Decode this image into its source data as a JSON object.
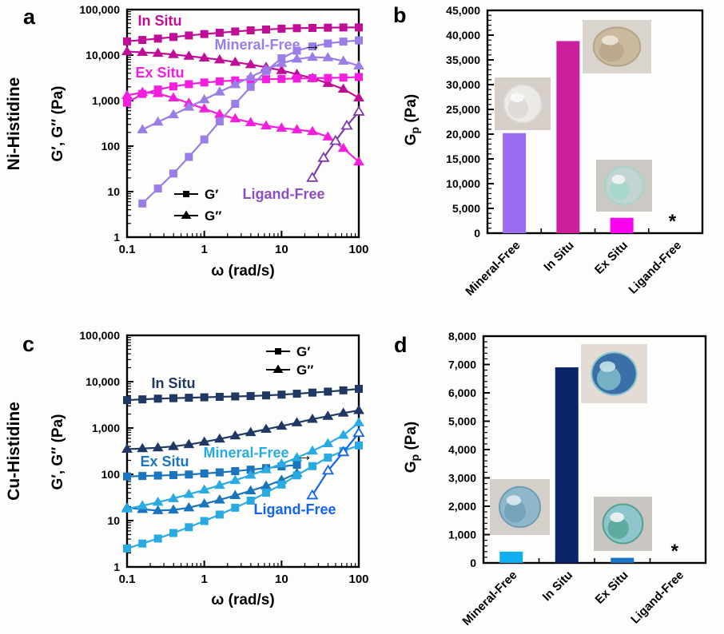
{
  "figure": {
    "row_labels": [
      {
        "text": "Ni-Histidine"
      },
      {
        "text": "Cu-Histidine"
      }
    ],
    "panels": [
      {
        "letter": "a"
      },
      {
        "letter": "b"
      },
      {
        "letter": "c"
      },
      {
        "letter": "d"
      }
    ]
  },
  "chart_data": [
    {
      "id": "a",
      "type": "line",
      "scale": "log-log",
      "xlabel": "ω (rad/s)",
      "ylabel": "G′, G″ (Pa)",
      "xlim": [
        0.1,
        100
      ],
      "ylim": [
        1,
        100000
      ],
      "legend": [
        {
          "marker": "square",
          "label": "G′"
        },
        {
          "marker": "triangle",
          "label": "G″"
        }
      ],
      "series": [
        {
          "name": "In Situ G′",
          "marker": "square",
          "color": "#C00D96",
          "x": [
            0.1,
            0.158,
            0.251,
            0.398,
            0.631,
            1,
            1.58,
            2.51,
            3.98,
            6.31,
            10,
            15.8,
            25.1,
            39.8,
            63.1,
            100
          ],
          "y": [
            20000,
            21500,
            23000,
            25000,
            27000,
            29000,
            31000,
            33000,
            35000,
            36500,
            38000,
            39000,
            39500,
            40000,
            40500,
            40500
          ]
        },
        {
          "name": "In Situ G″",
          "marker": "triangle",
          "color": "#C00D96",
          "x": [
            0.1,
            0.158,
            0.251,
            0.398,
            0.631,
            1,
            1.58,
            2.51,
            3.98,
            6.31,
            10,
            15.8,
            25.1,
            39.8,
            63.1,
            100
          ],
          "y": [
            12000,
            11500,
            11000,
            10300,
            9500,
            8700,
            7900,
            7000,
            6200,
            5400,
            4600,
            3800,
            3100,
            2400,
            1800,
            1150
          ]
        },
        {
          "name": "Ex Situ G′",
          "marker": "square",
          "color": "#F41FDE",
          "x": [
            0.1,
            0.158,
            0.251,
            0.398,
            0.631,
            1,
            1.58,
            2.51,
            3.98,
            6.31,
            10,
            15.8,
            25.1,
            39.8,
            63.1,
            100
          ],
          "y": [
            900,
            1400,
            1750,
            2050,
            2300,
            2500,
            2650,
            2780,
            2880,
            2950,
            3000,
            3050,
            3100,
            3150,
            3200,
            3300
          ]
        },
        {
          "name": "Ex Situ G″",
          "marker": "triangle",
          "color": "#F41FDE",
          "x": [
            0.1,
            0.158,
            0.251,
            0.398,
            0.631,
            1,
            1.58,
            2.51,
            3.98,
            6.31,
            10,
            15.8,
            25.1,
            39.8,
            63.1,
            100
          ],
          "y": [
            1300,
            1520,
            1430,
            1150,
            880,
            660,
            500,
            400,
            330,
            280,
            250,
            230,
            210,
            160,
            90,
            45
          ]
        },
        {
          "name": "Mineral-Free G′",
          "marker": "square",
          "color": "#9B7DE8",
          "x": [
            0.158,
            0.251,
            0.398,
            0.631,
            1,
            1.58,
            2.51,
            3.98,
            6.31,
            10,
            15.8,
            25.1,
            39.8,
            63.1,
            100
          ],
          "y": [
            5.5,
            11.7,
            25,
            58,
            140,
            350,
            850,
            2000,
            4500,
            8500,
            12500,
            15500,
            18000,
            19800,
            21000
          ]
        },
        {
          "name": "Mineral-Free G″",
          "marker": "triangle",
          "color": "#9B7DE8",
          "x": [
            0.158,
            0.251,
            0.398,
            0.631,
            1,
            1.58,
            2.51,
            3.98,
            6.31,
            10,
            15.8,
            25.1,
            39.8,
            63.1,
            100
          ],
          "y": [
            230,
            340,
            490,
            720,
            1050,
            1550,
            2250,
            3300,
            4800,
            6600,
            8200,
            9000,
            8800,
            7400,
            5800
          ]
        },
        {
          "name": "Ligand-Free G″",
          "marker": "triangle",
          "open": true,
          "color": "#7D3BAD",
          "x": [
            25,
            35,
            50,
            70,
            100
          ],
          "y": [
            20,
            55,
            130,
            280,
            570
          ]
        }
      ],
      "annotations": [
        {
          "text": "In Situ",
          "x": 200,
          "y": 32,
          "color": "#C00D96"
        },
        {
          "text": "Mineral-Free",
          "x": 322,
          "y": 62,
          "color": "#9B7DE8"
        },
        {
          "text": "→",
          "x": 391,
          "y": 63,
          "color": "#000000"
        },
        {
          "text": "Ex Situ",
          "x": 200,
          "y": 97,
          "color": "#F41FDE"
        },
        {
          "text": "Ligand-Free",
          "x": 355,
          "y": 249,
          "color": "#8B4FBF"
        }
      ]
    },
    {
      "id": "b",
      "type": "bar",
      "ylabel": "G_p (Pa)",
      "ylim": [
        0,
        45000
      ],
      "ytick_step": 5000,
      "yminor_step": 1000,
      "categories": [
        "Mineral-Free",
        "In Situ",
        "Ex Situ",
        "Ligand-Free"
      ],
      "values": [
        20200,
        38800,
        3100,
        0
      ],
      "colors": [
        "#9B6BF2",
        "#CC1F9E",
        "#FB03F0",
        null
      ],
      "no_gel_marker": "*",
      "photos": [
        {
          "label": "mineral-free-gel-photo",
          "x": 619,
          "y": 97,
          "w": 70,
          "h": 66,
          "bg": "#d6cfc9",
          "gel": "#eceae7",
          "gel2": "#dcd8d3",
          "highlight": "#fbfaf9"
        },
        {
          "label": "in-situ-gel-photo",
          "x": 729,
          "y": 25,
          "w": 86,
          "h": 67,
          "bg": "#dad4cf",
          "gel": "#c9b99e",
          "gel2": "#b4a489",
          "highlight": "#ece5d8"
        },
        {
          "label": "ex-situ-gel-photo",
          "x": 746,
          "y": 200,
          "w": 70,
          "h": 65,
          "bg": "#ccc8c3",
          "gel": "#c3d4d3",
          "gel2": "#9fd8c8",
          "highlight": "#f2f6f5"
        }
      ]
    },
    {
      "id": "c",
      "type": "line",
      "scale": "log-log",
      "xlabel": "ω (rad/s)",
      "ylabel": "G′, G″ (Pa)",
      "xlim": [
        0.1,
        100
      ],
      "ylim": [
        1,
        100000
      ],
      "legend": [
        {
          "marker": "square",
          "label": "G′"
        },
        {
          "marker": "triangle",
          "label": "G″"
        }
      ],
      "series": [
        {
          "name": "In Situ G′",
          "marker": "square",
          "color": "#1F3864",
          "x": [
            0.1,
            0.158,
            0.251,
            0.398,
            0.631,
            1,
            1.58,
            2.51,
            3.98,
            6.31,
            10,
            15.8,
            25.1,
            39.8,
            63.1,
            100
          ],
          "y": [
            4000,
            4150,
            4300,
            4400,
            4500,
            4600,
            4700,
            4800,
            4900,
            5050,
            5250,
            5500,
            5800,
            6100,
            6500,
            7000
          ]
        },
        {
          "name": "In Situ G″",
          "marker": "triangle",
          "color": "#1F3864",
          "x": [
            0.1,
            0.158,
            0.251,
            0.398,
            0.631,
            1,
            1.58,
            2.51,
            3.98,
            6.31,
            10,
            15.8,
            25.1,
            39.8,
            63.1,
            100
          ],
          "y": [
            350,
            360,
            375,
            400,
            440,
            500,
            580,
            680,
            800,
            940,
            1100,
            1300,
            1550,
            1800,
            2100,
            2400
          ]
        },
        {
          "name": "Ex Situ G′",
          "marker": "square",
          "color": "#1B75BC",
          "x": [
            0.1,
            0.158,
            0.251,
            0.398,
            0.631,
            1,
            1.58,
            2.51,
            3.98,
            6.31,
            10,
            15.8
          ],
          "y": [
            90,
            92,
            94,
            96,
            99,
            104,
            110,
            117,
            126,
            136,
            148,
            160
          ]
        },
        {
          "name": "Ex Situ G″",
          "marker": "triangle",
          "color": "#1B75BC",
          "x": [
            0.1,
            0.158,
            0.251,
            0.398,
            0.631,
            1,
            1.58,
            2.51,
            3.98,
            6.31,
            10,
            15.8
          ],
          "y": [
            19,
            17.5,
            16.5,
            17,
            19,
            23,
            28,
            35,
            44,
            56,
            75,
            105
          ]
        },
        {
          "name": "Mineral-Free G′",
          "marker": "square",
          "color": "#29ABE2",
          "x": [
            0.1,
            0.158,
            0.251,
            0.398,
            0.631,
            1,
            1.58,
            2.51,
            3.98,
            6.31,
            10,
            15.8,
            25.1,
            39.8,
            63.1,
            100
          ],
          "y": [
            2.5,
            3.2,
            4.1,
            5.4,
            7.2,
            9.8,
            13.5,
            19,
            27,
            40,
            60,
            95,
            150,
            230,
            320,
            420
          ]
        },
        {
          "name": "Mineral-Free G″",
          "marker": "triangle",
          "color": "#29ABE2",
          "x": [
            0.1,
            0.158,
            0.251,
            0.398,
            0.631,
            1,
            1.58,
            2.51,
            3.98,
            6.31,
            10,
            15.8,
            25.1,
            39.8,
            63.1,
            100
          ],
          "y": [
            18,
            21,
            25,
            30,
            37,
            46,
            58,
            74,
            96,
            126,
            168,
            228,
            320,
            460,
            700,
            1300
          ]
        },
        {
          "name": "Ligand-Free G″",
          "marker": "triangle",
          "open": true,
          "color": "#1464E6",
          "x": [
            25,
            40,
            63,
            100
          ],
          "y": [
            35,
            120,
            300,
            780
          ]
        }
      ],
      "annotations": [
        {
          "text": "In Situ",
          "x": 217,
          "y": 486,
          "color": "#1F3864"
        },
        {
          "text": "Ex Situ",
          "x": 206,
          "y": 584,
          "color": "#1B75BC"
        },
        {
          "text": "Mineral-Free",
          "x": 308,
          "y": 573,
          "color": "#29ABE2"
        },
        {
          "text": "→",
          "x": 381,
          "y": 577,
          "color": "#000000"
        },
        {
          "text": "Ligand-Free",
          "x": 369,
          "y": 644,
          "color": "#1464E6"
        }
      ]
    },
    {
      "id": "d",
      "type": "bar",
      "ylabel": "G_p (Pa)",
      "ylim": [
        0,
        8000
      ],
      "ytick_step": 1000,
      "yminor_step": 200,
      "categories": [
        "Mineral-Free",
        "In Situ",
        "Ex Situ",
        "Ligand-Free"
      ],
      "values": [
        400,
        6900,
        180,
        0
      ],
      "colors": [
        "#10AEEF",
        "#0B2468",
        "#1777C4",
        null
      ],
      "no_gel_marker": "*",
      "photos": [
        {
          "label": "in-situ-gel-photo",
          "x": 727,
          "y": 431,
          "w": 83,
          "h": 74,
          "bg": "#e2dcd5",
          "gel": "#3a6fa8",
          "gel2": "#8cc6cf",
          "highlight": "#c7e2e6"
        },
        {
          "label": "mineral-free-gel-photo",
          "x": 613,
          "y": 600,
          "w": 75,
          "h": 70,
          "bg": "#d5cfc9",
          "gel": "#8fb7c9",
          "gel2": "#6d9cb4",
          "highlight": "#dcebf0"
        },
        {
          "label": "ex-situ-gel-photo",
          "x": 743,
          "y": 622,
          "w": 73,
          "h": 68,
          "bg": "#c9c5c0",
          "gel": "#8ec4cc",
          "gel2": "#4da491",
          "highlight": "#f0f6f4"
        }
      ]
    }
  ]
}
